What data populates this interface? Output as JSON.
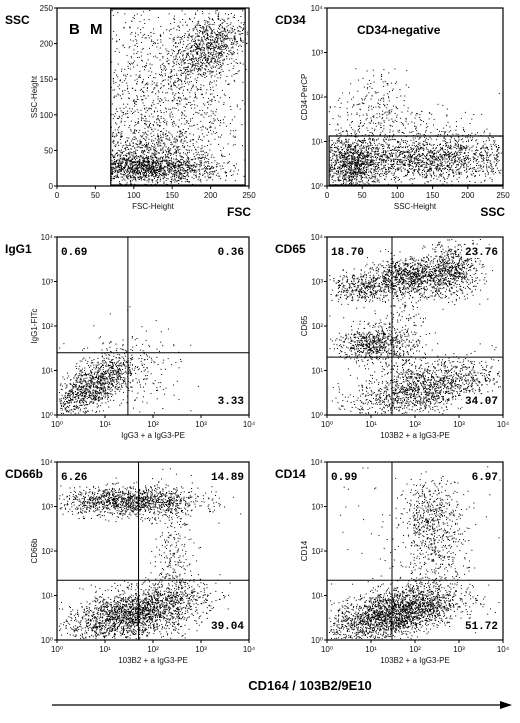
{
  "panels": [
    {
      "id": "bm",
      "corner_label": "SSC",
      "inner_label": "B M",
      "bottom_label": "FSC",
      "xlabel": "FSC-Height",
      "ylabel": "SSC-Height",
      "xscale": "linear",
      "yscale": "linear",
      "xlim": [
        0,
        250
      ],
      "ylim": [
        0,
        250
      ],
      "xticks": [
        "0",
        "50",
        "100",
        "150",
        "200",
        "250"
      ],
      "yticks": [
        "0",
        "50",
        "100",
        "150",
        "200",
        "250"
      ],
      "quadrant_values": [],
      "gate": {
        "x": [
          70,
          245
        ],
        "y": [
          0,
          250
        ]
      },
      "quadrant_lines": null
    },
    {
      "id": "cd34",
      "corner_label": "CD34",
      "inner_label": "CD34-negative",
      "bottom_label": "SSC",
      "xlabel": "SSC-Height",
      "ylabel": "CD34-PerCP",
      "xscale": "linear",
      "yscale": "log",
      "xlim": [
        0,
        250
      ],
      "ylim": [
        1,
        10000
      ],
      "xticks": [
        "0",
        "50",
        "100",
        "150",
        "200",
        "250"
      ],
      "yticks": [
        "10⁰",
        "10¹",
        "10²",
        "10³",
        "10⁴"
      ],
      "quadrant_values": [],
      "gate": {
        "x": [
          3,
          250
        ],
        "y": [
          1,
          14
        ]
      },
      "quadrant_lines": null
    },
    {
      "id": "igg1",
      "corner_label": "IgG1",
      "inner_label": "",
      "bottom_label": "",
      "xlabel": "IgG3 + a IgG3-PE",
      "ylabel": "IgG1-FITc",
      "xscale": "log",
      "yscale": "log",
      "xlim": [
        1,
        10000
      ],
      "ylim": [
        1,
        10000
      ],
      "xticks": [
        "10⁰",
        "10¹",
        "10²",
        "10³",
        "10⁴"
      ],
      "yticks": [
        "10⁰",
        "10¹",
        "10²",
        "10³",
        "10⁴"
      ],
      "quadrant_values": [
        "0.69",
        "0.36",
        "3.33"
      ],
      "gate": null,
      "quadrant_lines": {
        "x": 30,
        "y": 25
      }
    },
    {
      "id": "cd65",
      "corner_label": "CD65",
      "inner_label": "",
      "bottom_label": "",
      "xlabel": "103B2 + a IgG3-PE",
      "ylabel": "CD65",
      "xscale": "log",
      "yscale": "log",
      "xlim": [
        1,
        10000
      ],
      "ylim": [
        1,
        10000
      ],
      "xticks": [
        "10⁰",
        "10¹",
        "10²",
        "10³",
        "10⁴"
      ],
      "yticks": [
        "10⁰",
        "10¹",
        "10²",
        "10³",
        "10⁴"
      ],
      "quadrant_values": [
        "18.70",
        "23.76",
        "34.07"
      ],
      "gate": null,
      "quadrant_lines": {
        "x": 30,
        "y": 20
      }
    },
    {
      "id": "cd66b",
      "corner_label": "CD66b",
      "inner_label": "",
      "bottom_label": "",
      "xlabel": "103B2 + a IgG3-PE",
      "ylabel": "CD66b",
      "xscale": "log",
      "yscale": "log",
      "xlim": [
        1,
        10000
      ],
      "ylim": [
        1,
        10000
      ],
      "xticks": [
        "10⁰",
        "10¹",
        "10²",
        "10³",
        "10⁴"
      ],
      "yticks": [
        "10⁰",
        "10¹",
        "10²",
        "10³",
        "10⁴"
      ],
      "quadrant_values": [
        "6.26",
        "14.89",
        "39.04"
      ],
      "gate": null,
      "quadrant_lines": {
        "x": 50,
        "y": 22
      }
    },
    {
      "id": "cd14",
      "corner_label": "CD14",
      "inner_label": "",
      "bottom_label": "",
      "xlabel": "103B2 + a IgG3-PE",
      "ylabel": "CD14",
      "xscale": "log",
      "yscale": "log",
      "xlim": [
        1,
        10000
      ],
      "ylim": [
        1,
        10000
      ],
      "xticks": [
        "10⁰",
        "10¹",
        "10²",
        "10³",
        "10⁴"
      ],
      "yticks": [
        "10⁰",
        "10¹",
        "10²",
        "10³",
        "10⁴"
      ],
      "quadrant_values": [
        "0.99",
        "6.97",
        "51.72"
      ],
      "gate": null,
      "quadrant_lines": {
        "x": 30,
        "y": 22
      }
    }
  ],
  "bottom_axis_label": "CD164  /  103B2/9E10",
  "chart_data": [
    {
      "type": "scatter",
      "panel": "bm",
      "xlabel": "FSC-Height",
      "ylabel": "SSC-Height",
      "xlim": [
        0,
        250
      ],
      "ylim": [
        0,
        250
      ],
      "clusters": [
        {
          "x": [
            75,
            240
          ],
          "y": [
            10,
            70
          ]
        },
        {
          "x": [
            150,
            245
          ],
          "y": [
            140,
            250
          ]
        },
        {
          "x": [
            75,
            245
          ],
          "y": [
            0,
            250
          ]
        }
      ]
    },
    {
      "type": "scatter",
      "panel": "cd34",
      "xlabel": "SSC-Height",
      "ylabel": "CD34-PerCP",
      "xlim": [
        0,
        250
      ],
      "ylim": [
        1,
        10000
      ],
      "yscale": "log"
    },
    {
      "type": "scatter",
      "panel": "igg1",
      "xlabel": "IgG3 + a IgG3-PE",
      "ylabel": "IgG1-FITc",
      "quadrant_percent": {
        "upper_left": 0.69,
        "upper_right": 0.36,
        "lower_right": 3.33
      }
    },
    {
      "type": "scatter",
      "panel": "cd65",
      "xlabel": "103B2 + a IgG3-PE",
      "ylabel": "CD65",
      "quadrant_percent": {
        "upper_left": 18.7,
        "upper_right": 23.76,
        "lower_right": 34.07
      }
    },
    {
      "type": "scatter",
      "panel": "cd66b",
      "xlabel": "103B2 + a IgG3-PE",
      "ylabel": "CD66b",
      "quadrant_percent": {
        "upper_left": 6.26,
        "upper_right": 14.89,
        "lower_right": 39.04
      }
    },
    {
      "type": "scatter",
      "panel": "cd14",
      "xlabel": "103B2 + a IgG3-PE",
      "ylabel": "CD14",
      "quadrant_percent": {
        "upper_left": 0.99,
        "upper_right": 6.97,
        "lower_right": 51.72
      }
    }
  ]
}
